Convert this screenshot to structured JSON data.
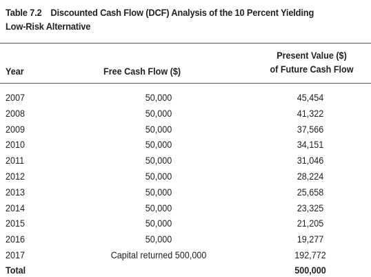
{
  "table": {
    "number": "Table 7.2",
    "title": "Discounted Cash Flow (DCF) Analysis of the 10 Percent Yielding Low-Risk Alternative",
    "headers": {
      "year": "Year",
      "free_cash_flow": "Free Cash Flow ($)",
      "present_value_line1": "Present Value ($)",
      "present_value_line2": "of Future Cash Flow"
    },
    "rows": [
      {
        "year": "2007",
        "free_cash_flow": "50,000",
        "present_value": "45,454"
      },
      {
        "year": "2008",
        "free_cash_flow": "50,000",
        "present_value": "41,322"
      },
      {
        "year": "2009",
        "free_cash_flow": "50,000",
        "present_value": "37,566"
      },
      {
        "year": "2010",
        "free_cash_flow": "50,000",
        "present_value": "34,151"
      },
      {
        "year": "2011",
        "free_cash_flow": "50,000",
        "present_value": "31,046"
      },
      {
        "year": "2012",
        "free_cash_flow": "50,000",
        "present_value": "28,224"
      },
      {
        "year": "2013",
        "free_cash_flow": "50,000",
        "present_value": "25,658"
      },
      {
        "year": "2014",
        "free_cash_flow": "50,000",
        "present_value": "23,325"
      },
      {
        "year": "2015",
        "free_cash_flow": "50,000",
        "present_value": "21,205"
      },
      {
        "year": "2016",
        "free_cash_flow": "50,000",
        "present_value": "19,277"
      },
      {
        "year": "2017",
        "free_cash_flow": "Capital returned 500,000",
        "present_value": "192,772"
      }
    ],
    "total": {
      "label": "Total",
      "present_value": "500,000"
    }
  }
}
